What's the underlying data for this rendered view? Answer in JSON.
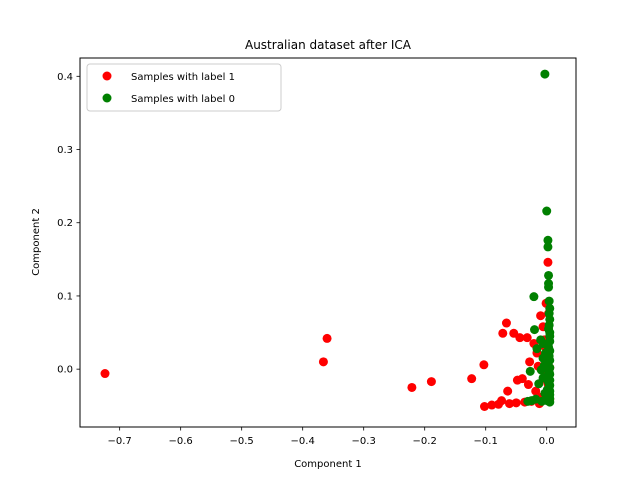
{
  "chart_data": {
    "type": "scatter",
    "title": "Australian dataset after ICA",
    "xlabel": "Component 1",
    "ylabel": "Component 2",
    "xlim": [
      -0.765,
      0.048
    ],
    "ylim": [
      -0.079,
      0.425
    ],
    "xticks": [
      "−0.7",
      "−0.6",
      "−0.5",
      "−0.4",
      "−0.3",
      "−0.2",
      "−0.1",
      "0.0"
    ],
    "xtick_values": [
      -0.7,
      -0.6,
      -0.5,
      -0.4,
      -0.3,
      -0.2,
      -0.1,
      0.0
    ],
    "yticks": [
      "0.0",
      "0.1",
      "0.2",
      "0.3",
      "0.4"
    ],
    "ytick_values": [
      0.0,
      0.1,
      0.2,
      0.3,
      0.4
    ],
    "grid": false,
    "legend_position": "top-left",
    "series": [
      {
        "name": "Samples with label 1",
        "color": "#ff0000",
        "points": [
          [
            -0.724,
            -0.006
          ],
          [
            -0.36,
            0.042
          ],
          [
            -0.366,
            0.01
          ],
          [
            -0.221,
            -0.025
          ],
          [
            -0.189,
            -0.017
          ],
          [
            -0.123,
            -0.013
          ],
          [
            -0.103,
            0.006
          ],
          [
            -0.102,
            -0.051
          ],
          [
            -0.09,
            -0.049
          ],
          [
            -0.079,
            -0.048
          ],
          [
            -0.074,
            -0.043
          ],
          [
            -0.064,
            -0.03
          ],
          [
            -0.061,
            -0.047
          ],
          [
            -0.05,
            -0.046
          ],
          [
            -0.072,
            0.049
          ],
          [
            -0.066,
            0.063
          ],
          [
            -0.054,
            0.049
          ],
          [
            -0.044,
            0.043
          ],
          [
            -0.048,
            -0.015
          ],
          [
            -0.04,
            -0.013
          ],
          [
            -0.036,
            -0.045
          ],
          [
            -0.032,
            0.043
          ],
          [
            -0.03,
            -0.021
          ],
          [
            -0.028,
            0.01
          ],
          [
            -0.025,
            -0.044
          ],
          [
            -0.021,
            0.035
          ],
          [
            -0.018,
            -0.03
          ],
          [
            -0.016,
            0.022
          ],
          [
            -0.014,
            0.004
          ],
          [
            -0.012,
            -0.047
          ],
          [
            -0.01,
            0.073
          ],
          [
            -0.008,
            -0.038
          ],
          [
            -0.006,
            0.058
          ],
          [
            -0.004,
            0.04
          ],
          [
            -0.003,
            -0.013
          ],
          [
            -0.002,
            0.02
          ],
          [
            -0.001,
            0.09
          ],
          [
            0.0,
            -0.035
          ],
          [
            0.001,
            0.03
          ],
          [
            0.002,
            -0.02
          ],
          [
            0.003,
            0.076
          ],
          [
            0.004,
            0.013
          ],
          [
            0.002,
            0.146
          ],
          [
            0.003,
            0.055
          ],
          [
            0.005,
            -0.041
          ],
          [
            0.005,
            0.002
          ],
          [
            0.001,
            -0.007
          ],
          [
            -0.005,
            0.032
          ]
        ]
      },
      {
        "name": "Samples with label 0",
        "color": "#008000",
        "points": [
          [
            -0.003,
            0.403
          ],
          [
            0.0,
            0.216
          ],
          [
            0.002,
            0.176
          ],
          [
            0.002,
            0.167
          ],
          [
            0.003,
            0.128
          ],
          [
            0.003,
            0.117
          ],
          [
            0.003,
            0.112
          ],
          [
            -0.021,
            0.099
          ],
          [
            0.004,
            0.093
          ],
          [
            0.005,
            0.083
          ],
          [
            0.004,
            0.076
          ],
          [
            0.005,
            0.068
          ],
          [
            0.004,
            0.06
          ],
          [
            0.003,
            0.055
          ],
          [
            -0.02,
            0.054
          ],
          [
            0.005,
            0.05
          ],
          [
            0.005,
            0.045
          ],
          [
            -0.01,
            0.04
          ],
          [
            0.005,
            0.038
          ],
          [
            -0.006,
            0.035
          ],
          [
            0.003,
            0.03
          ],
          [
            -0.016,
            0.028
          ],
          [
            0.005,
            0.025
          ],
          [
            -0.002,
            0.022
          ],
          [
            0.004,
            0.018
          ],
          [
            -0.006,
            0.015
          ],
          [
            0.005,
            0.012
          ],
          [
            0.002,
            0.008
          ],
          [
            -0.004,
            0.005
          ],
          [
            0.005,
            0.002
          ],
          [
            -0.009,
            -0.001
          ],
          [
            0.004,
            -0.004
          ],
          [
            -0.027,
            -0.003
          ],
          [
            0.005,
            -0.007
          ],
          [
            0.001,
            -0.01
          ],
          [
            -0.006,
            -0.012
          ],
          [
            0.005,
            -0.015
          ],
          [
            0.003,
            -0.018
          ],
          [
            -0.013,
            -0.02
          ],
          [
            0.005,
            -0.022
          ],
          [
            0.004,
            -0.025
          ],
          [
            0.001,
            -0.028
          ],
          [
            0.005,
            -0.03
          ],
          [
            -0.003,
            -0.033
          ],
          [
            0.005,
            -0.035
          ],
          [
            0.003,
            -0.038
          ],
          [
            0.005,
            -0.04
          ],
          [
            -0.018,
            -0.041
          ],
          [
            -0.025,
            -0.043
          ],
          [
            -0.031,
            -0.044
          ],
          [
            0.001,
            -0.043
          ],
          [
            0.004,
            -0.042
          ],
          [
            0.005,
            -0.045
          ],
          [
            -0.008,
            -0.044
          ]
        ]
      }
    ]
  }
}
